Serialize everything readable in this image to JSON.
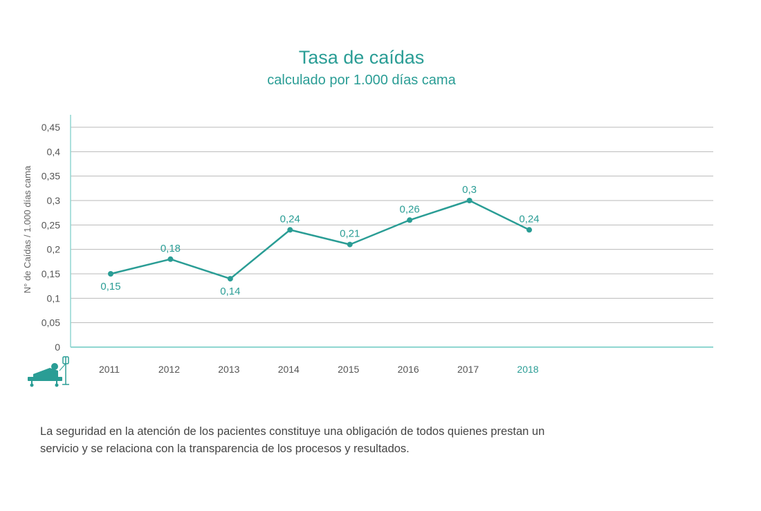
{
  "chart_data": {
    "type": "line",
    "title": "Tasa de caídas",
    "subtitle": "calculado por 1.000 días cama",
    "ylabel": "N° de Caídas / 1.000 días cama",
    "xlabel": "",
    "categories": [
      "2011",
      "2012",
      "2013",
      "2014",
      "2015",
      "2016",
      "2017",
      "2018"
    ],
    "values": [
      0.15,
      0.18,
      0.14,
      0.24,
      0.21,
      0.26,
      0.3,
      0.24
    ],
    "value_labels": [
      "0,15",
      "0,18",
      "0,14",
      "0,24",
      "0,21",
      "0,26",
      "0,3",
      "0,24"
    ],
    "ylim": [
      0,
      0.45
    ],
    "y_ticks": [
      "0",
      "0,05",
      "0,1",
      "0,15",
      "0,2",
      "0,25",
      "0,3",
      "0,35",
      "0,4",
      "0,45"
    ],
    "grid": true,
    "legend": "none",
    "colors": {
      "line": "#2a9d95",
      "grid": "#b9b9b9",
      "axis": "#8fd6d0",
      "highlight_category": "#2a9d95"
    },
    "icon": "patient-bed-icon"
  },
  "footnote": "La seguridad en la atención de los pacientes constituye una obligación de todos quienes prestan un servicio y se relaciona con la transparencia de los procesos y resultados."
}
